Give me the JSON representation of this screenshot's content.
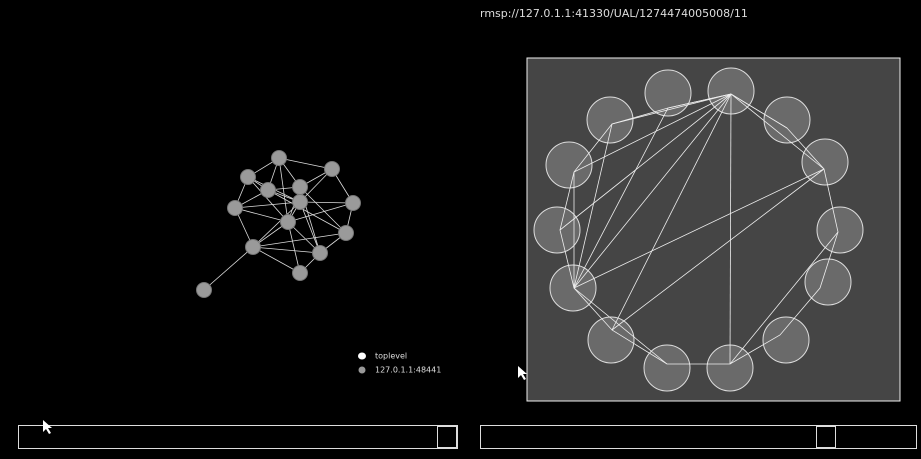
{
  "header": {
    "url": "rmsp://127.0.1.1:41330/UAL/1274474005008/11"
  },
  "legend": [
    {
      "label": "toplevel"
    },
    {
      "label": "127.0.1.1:48441"
    }
  ]
}
